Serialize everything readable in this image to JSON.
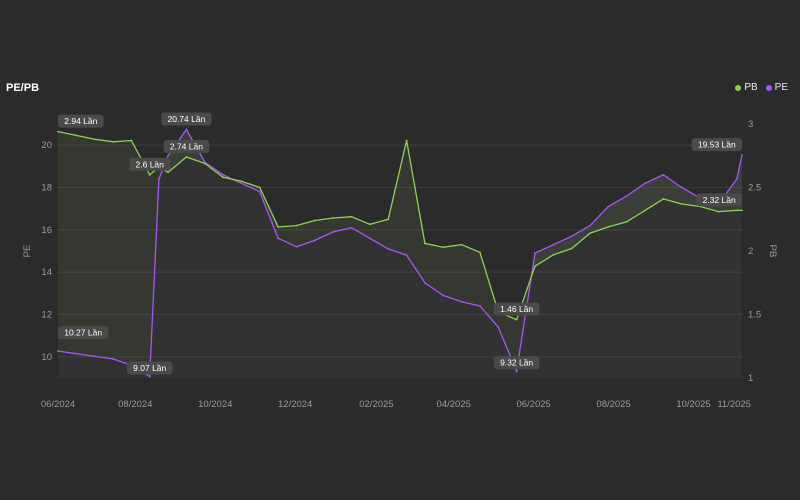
{
  "chart_data": {
    "type": "line",
    "title": "PE/PB",
    "y_left_label": "PE",
    "y_right_label": "PB",
    "y_left_range": [
      9,
      21
    ],
    "y_right_range": [
      1,
      3
    ],
    "y_left_ticks": [
      "10",
      "12",
      "14",
      "16",
      "18",
      "20"
    ],
    "y_right_ticks": [
      "1",
      "1.5",
      "2",
      "2.5",
      "3"
    ],
    "x_ticks": [
      "06/2024",
      "08/2024",
      "10/2024",
      "12/2024",
      "02/2025",
      "04/2025",
      "06/2025",
      "08/2025",
      "10/2025",
      "11/2025"
    ],
    "legend": [
      {
        "name": "PB",
        "color": "#8fd14f"
      },
      {
        "name": "PE",
        "color": "#a855f7"
      }
    ],
    "grid": true,
    "legend_position": "top-right",
    "x": [
      "2024-06-03",
      "2024-06-17",
      "2024-07-01",
      "2024-07-15",
      "2024-07-29",
      "2024-08-12",
      "2024-08-19",
      "2024-08-26",
      "2024-09-09",
      "2024-09-23",
      "2024-10-07",
      "2024-10-21",
      "2024-11-04",
      "2024-11-18",
      "2024-12-02",
      "2024-12-16",
      "2024-12-30",
      "2025-01-13",
      "2025-01-27",
      "2025-02-10",
      "2025-02-24",
      "2025-03-10",
      "2025-03-24",
      "2025-04-07",
      "2025-04-21",
      "2025-05-05",
      "2025-05-19",
      "2025-06-02",
      "2025-06-16",
      "2025-06-30",
      "2025-07-14",
      "2025-07-28",
      "2025-08-11",
      "2025-08-25",
      "2025-09-08",
      "2025-09-22",
      "2025-10-06",
      "2025-10-20",
      "2025-11-03",
      "2025-11-07"
    ],
    "series": [
      {
        "name": "PB",
        "color": "#8fd14f",
        "values": [
          2.94,
          2.91,
          2.88,
          2.86,
          2.87,
          2.6,
          2.66,
          2.62,
          2.74,
          2.69,
          2.58,
          2.55,
          2.5,
          2.19,
          2.2,
          2.24,
          2.26,
          2.27,
          2.21,
          2.25,
          2.87,
          2.06,
          2.03,
          2.05,
          1.99,
          1.52,
          1.46,
          1.88,
          1.97,
          2.02,
          2.14,
          2.19,
          2.23,
          2.32,
          2.41,
          2.37,
          2.35,
          2.31,
          2.32,
          2.32
        ]
      },
      {
        "name": "PE",
        "color": "#a855f7",
        "values": [
          10.27,
          10.15,
          10.02,
          9.9,
          9.6,
          9.07,
          18.4,
          19.5,
          20.74,
          19.2,
          18.6,
          18.2,
          17.8,
          15.6,
          15.2,
          15.5,
          15.9,
          16.1,
          15.6,
          15.1,
          14.8,
          13.5,
          12.9,
          12.6,
          12.4,
          11.4,
          9.32,
          14.9,
          15.3,
          15.7,
          16.2,
          17.1,
          17.6,
          18.2,
          18.6,
          18.0,
          17.5,
          17.2,
          18.4,
          19.53
        ]
      }
    ],
    "annotations": [
      {
        "text": "2.94 Lần",
        "series": "PB",
        "index": 0
      },
      {
        "text": "2.6 Lần",
        "series": "PB",
        "index": 5
      },
      {
        "text": "2.74 Lần",
        "series": "PB",
        "index": 8
      },
      {
        "text": "1.46 Lần",
        "series": "PB",
        "index": 26
      },
      {
        "text": "2.32 Lần",
        "series": "PB",
        "index": 39
      },
      {
        "text": "20.74 Lần",
        "series": "PE",
        "index": 8
      },
      {
        "text": "10.27 Lần",
        "series": "PE",
        "index": 0
      },
      {
        "text": "9.07 Lần",
        "series": "PE",
        "index": 5
      },
      {
        "text": "9.32 Lần",
        "series": "PE",
        "index": 26
      },
      {
        "text": "19.53 Lần",
        "series": "PE",
        "index": 39
      }
    ]
  }
}
